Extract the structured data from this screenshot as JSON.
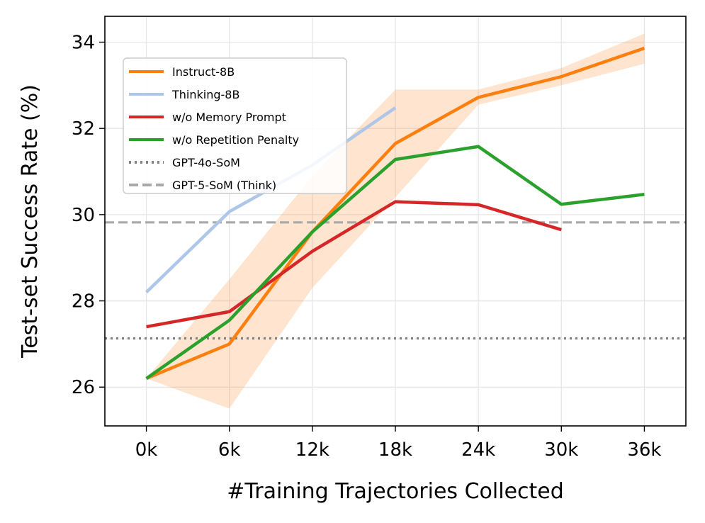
{
  "chart_data": {
    "type": "line",
    "xlabel": "#Training Trajectories Collected",
    "ylabel": "Test-set Success Rate (%)",
    "x": [
      0,
      6,
      12,
      18,
      24,
      30,
      36
    ],
    "xtick_labels": [
      "0k",
      "6k",
      "12k",
      "18k",
      "24k",
      "30k",
      "36k"
    ],
    "yticks": [
      26,
      28,
      30,
      32,
      34
    ],
    "ytick_labels": [
      "26",
      "28",
      "30",
      "32",
      "34"
    ],
    "xlim": [
      -3,
      39
    ],
    "ylim": [
      25.1,
      34.6
    ],
    "grid": true,
    "legend_position": "top-left",
    "series": [
      {
        "name": "Instruct-8B",
        "color": "#ff7f0e",
        "x": [
          0,
          6,
          12,
          18,
          24,
          30,
          36
        ],
        "values": [
          26.2,
          27.0,
          29.6,
          31.65,
          32.72,
          33.2,
          33.86
        ],
        "band_low": [
          26.2,
          25.5,
          28.3,
          30.4,
          32.55,
          33.0,
          33.5
        ],
        "band_high": [
          26.2,
          28.5,
          30.9,
          32.9,
          32.9,
          33.4,
          34.2
        ]
      },
      {
        "name": "Thinking-8B",
        "color": "#aec7e8",
        "x": [
          0,
          6,
          12,
          18
        ],
        "values": [
          28.2,
          30.07,
          31.15,
          32.48
        ]
      },
      {
        "name": "w/o Memory Prompt",
        "color": "#d62728",
        "x": [
          0,
          6,
          12,
          18,
          24,
          30
        ],
        "values": [
          27.4,
          27.75,
          29.15,
          30.3,
          30.23,
          29.65
        ]
      },
      {
        "name": "w/o Repetition Penalty",
        "color": "#2ca02c",
        "x": [
          0,
          6,
          12,
          18,
          24,
          30,
          36
        ],
        "values": [
          26.2,
          27.55,
          29.6,
          31.28,
          31.58,
          30.24,
          30.47
        ]
      }
    ],
    "reference_lines": [
      {
        "name": "GPT-4o-SoM",
        "value": 27.13,
        "style": "dotted",
        "color": "#808080"
      },
      {
        "name": "GPT-5-SoM (Think)",
        "value": 29.82,
        "style": "dashed",
        "color": "#a9a9a9"
      }
    ]
  }
}
